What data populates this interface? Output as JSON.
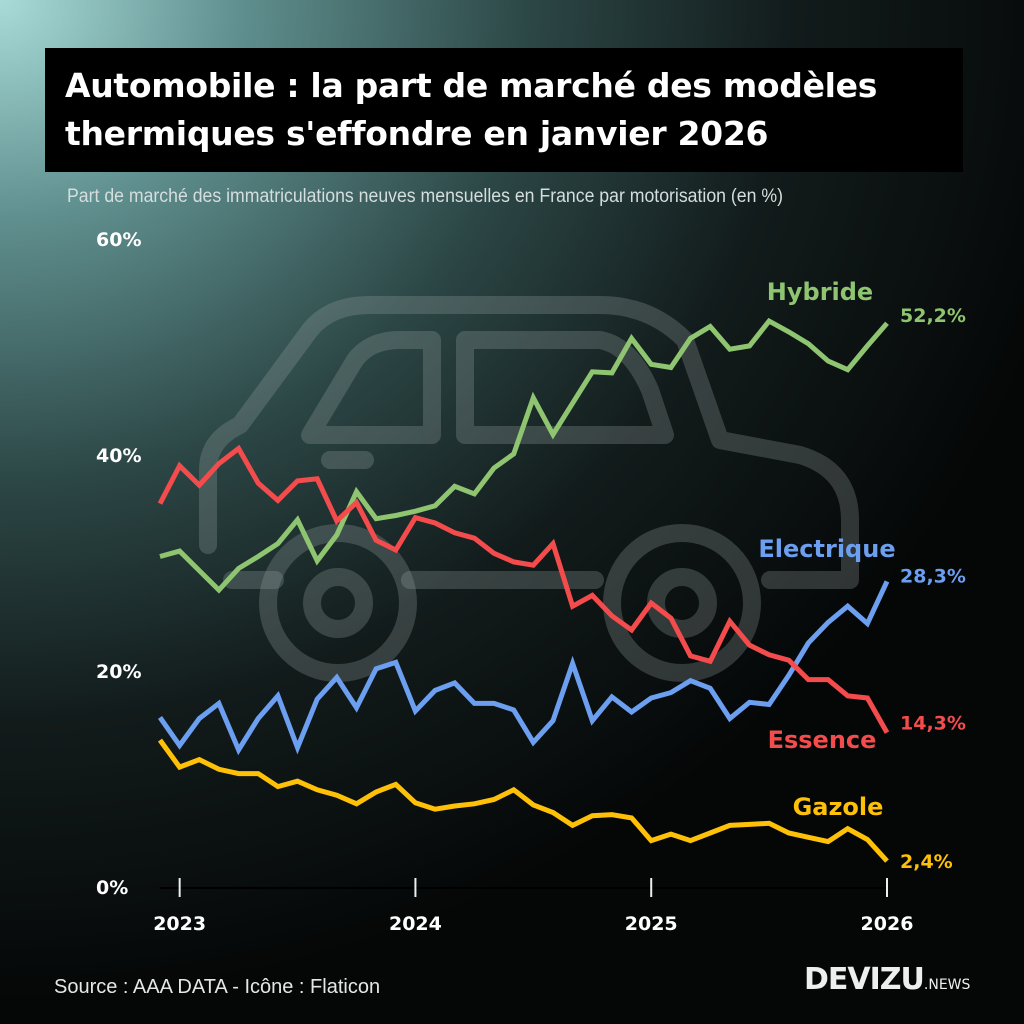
{
  "title_line1": "Automobile : la part de marché des modèles",
  "title_line2": "thermiques s'effondre en janvier 2026",
  "subtitle": "Part de marché des immatriculations neuves mensuelles en France par motorisation (en %)",
  "source": "Source : AAA DATA - Icône : Flaticon",
  "logo": {
    "main": "DEVIZU",
    "suffix": ".NEWS"
  },
  "background_icon": "car-icon",
  "chart_data": {
    "type": "line",
    "title": "Automobile : la part de marché des modèles thermiques s'effondre en janvier 2026",
    "subtitle": "Part de marché des immatriculations neuves mensuelles en France par motorisation (en %)",
    "xlabel": "",
    "ylabel": "",
    "ylim": [
      0,
      60
    ],
    "yticks": [
      "0%",
      "20%",
      "40%",
      "60%"
    ],
    "ytick_values": [
      0,
      20,
      40,
      60
    ],
    "xticks": [
      "2023",
      "2024",
      "2025",
      "2026"
    ],
    "xtick_values": [
      "2023-01",
      "2024-01",
      "2025-01",
      "2026-01"
    ],
    "grid": false,
    "legend": "inline labels at line ends",
    "x": [
      "2022-12",
      "2023-01",
      "2023-02",
      "2023-03",
      "2023-04",
      "2023-05",
      "2023-06",
      "2023-07",
      "2023-08",
      "2023-09",
      "2023-10",
      "2023-11",
      "2023-12",
      "2024-01",
      "2024-02",
      "2024-03",
      "2024-04",
      "2024-05",
      "2024-06",
      "2024-07",
      "2024-08",
      "2024-09",
      "2024-10",
      "2024-11",
      "2024-12",
      "2025-01",
      "2025-02",
      "2025-03",
      "2025-04",
      "2025-05",
      "2025-06",
      "2025-07",
      "2025-08",
      "2025-09",
      "2025-10",
      "2025-11",
      "2025-12",
      "2026-01"
    ],
    "series": [
      {
        "name": "Hybride",
        "color": "#8fc571",
        "end_label": "52,2%",
        "values": [
          30.6,
          31.1,
          29.3,
          27.5,
          29.5,
          30.6,
          31.8,
          34.0,
          30.2,
          32.6,
          36.6,
          34.1,
          34.4,
          34.8,
          35.3,
          37.1,
          36.4,
          38.8,
          40.1,
          45.3,
          41.9,
          44.8,
          47.7,
          47.6,
          50.8,
          48.4,
          48.1,
          50.8,
          51.9,
          49.8,
          50.1,
          52.4,
          51.4,
          50.3,
          48.7,
          47.9,
          50.1,
          52.2
        ]
      },
      {
        "name": "Electrique",
        "color": "#6c9ff0",
        "end_label": "28,3%",
        "values": [
          15.7,
          13.1,
          15.6,
          17.0,
          12.7,
          15.6,
          17.7,
          12.9,
          17.4,
          19.4,
          16.6,
          20.2,
          20.8,
          16.3,
          18.2,
          18.9,
          17.0,
          17.0,
          16.4,
          13.4,
          15.4,
          20.7,
          15.4,
          17.6,
          16.2,
          17.5,
          18.0,
          19.1,
          18.4,
          15.6,
          17.1,
          16.9,
          19.6,
          22.6,
          24.5,
          26.0,
          24.4,
          28.3
        ]
      },
      {
        "name": "Essence",
        "color": "#f44c4c",
        "end_label": "14,3%",
        "values": [
          35.5,
          39.0,
          37.2,
          39.2,
          40.6,
          37.4,
          35.8,
          37.6,
          37.8,
          33.9,
          35.6,
          32.1,
          31.2,
          34.2,
          33.7,
          32.8,
          32.3,
          30.9,
          30.1,
          29.8,
          31.8,
          26.0,
          27.0,
          25.1,
          23.8,
          26.3,
          24.9,
          21.4,
          20.9,
          24.6,
          22.4,
          21.5,
          21.0,
          19.2,
          19.2,
          17.7,
          17.5,
          14.3
        ]
      },
      {
        "name": "Gazole",
        "color": "#ffc107",
        "end_label": "2,4%",
        "values": [
          13.6,
          11.1,
          11.8,
          10.9,
          10.5,
          10.5,
          9.3,
          9.8,
          9.0,
          8.5,
          7.7,
          8.8,
          9.5,
          7.8,
          7.2,
          7.5,
          7.7,
          8.1,
          9.0,
          7.6,
          6.9,
          5.7,
          6.6,
          6.7,
          6.4,
          4.3,
          4.9,
          4.3,
          5.0,
          5.7,
          5.8,
          5.9,
          5.0,
          4.6,
          4.2,
          5.4,
          4.4,
          2.4
        ]
      }
    ]
  }
}
